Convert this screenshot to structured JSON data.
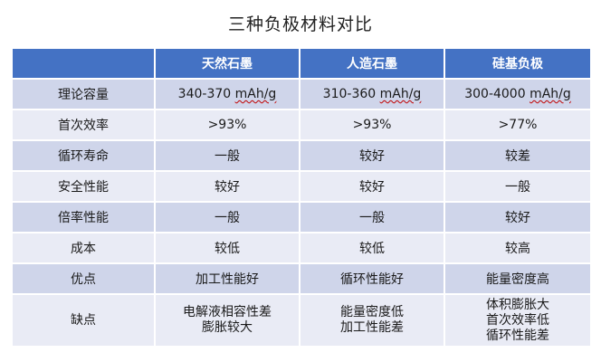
{
  "title": "三种负极材料对比",
  "table": {
    "header": [
      "",
      "天然石墨",
      "人造石墨",
      "硅基负极"
    ],
    "rows": [
      {
        "label": "理论容量",
        "cells": [
          {
            "prefix": "340-370 ",
            "unit": "mAh/g"
          },
          {
            "prefix": "310-360 ",
            "unit": "mAh/g"
          },
          {
            "prefix": "300-4000 ",
            "unit": "mAh/g"
          }
        ]
      },
      {
        "label": "首次效率",
        "cells": [
          ">93%",
          ">93%",
          ">77%"
        ]
      },
      {
        "label": "循环寿命",
        "cells": [
          "一般",
          "较好",
          "较差"
        ]
      },
      {
        "label": "安全性能",
        "cells": [
          "较好",
          "较好",
          "一般"
        ]
      },
      {
        "label": "倍率性能",
        "cells": [
          "一般",
          "一般",
          "较好"
        ]
      },
      {
        "label": "成本",
        "cells": [
          "较低",
          "较低",
          "较高"
        ]
      },
      {
        "label": "优点",
        "cells": [
          "加工性能好",
          "循环性能好",
          "能量密度高"
        ]
      },
      {
        "label": "缺点",
        "cells": [
          [
            "电解液相容性差",
            "膨胀较大"
          ],
          [
            "能量密度低",
            "加工性能差"
          ],
          [
            "体积膨胀大",
            "首次效率低",
            "循环性能差"
          ]
        ]
      }
    ]
  }
}
